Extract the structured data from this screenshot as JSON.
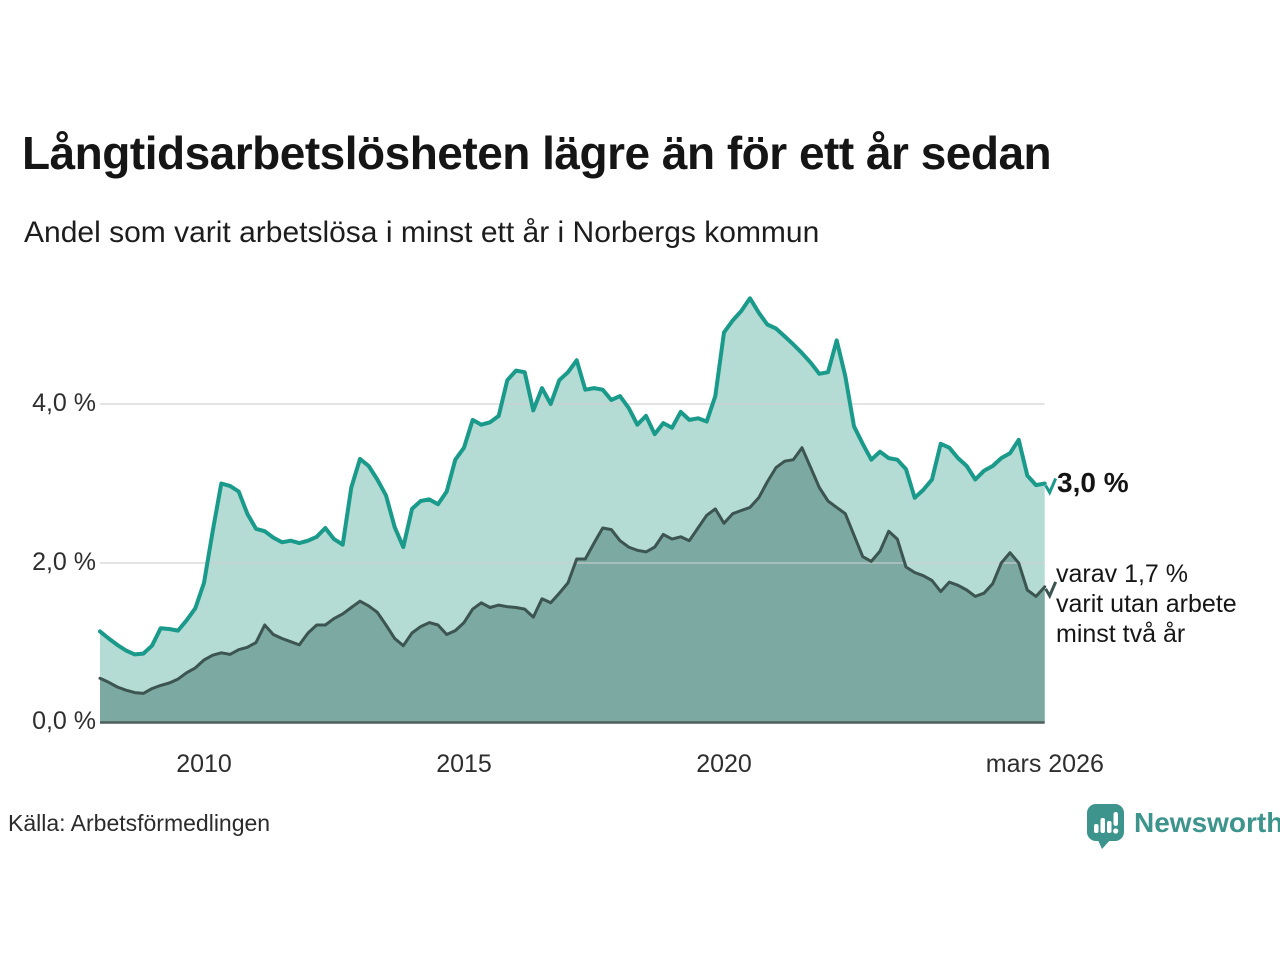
{
  "header": {
    "title": "Långtidsarbetslösheten lägre än för ett år sedan",
    "subtitle": "Andel som varit arbetslösa i minst ett år i Norbergs kommun"
  },
  "chart_data": {
    "type": "area",
    "title": "Långtidsarbetslösheten lägre än för ett år sedan",
    "subtitle": "Andel som varit arbetslösa i minst ett år i Norbergs kommun",
    "unit": "%",
    "x_start_year": 2008.0,
    "x_step_years": 0.16667,
    "x_end_year": 2026.17,
    "x_end_label": "mars 2026",
    "ylim": [
      0,
      5.6
    ],
    "grid": "horizontal",
    "legend_position": "right-annotations",
    "y_ticks": [
      {
        "value": 0,
        "label": "0,0 %"
      },
      {
        "value": 2,
        "label": "2,0 %"
      },
      {
        "value": 4,
        "label": "4,0 %"
      }
    ],
    "x_ticks": [
      {
        "year": 2010.0,
        "label": "2010"
      },
      {
        "year": 2015.0,
        "label": "2015"
      },
      {
        "year": 2020.0,
        "label": "2020"
      },
      {
        "year": 2026.17,
        "label": "mars 2026"
      }
    ],
    "series": [
      {
        "name": "Arbetslösa minst ett år",
        "latest_value": 3.0,
        "stroke": "#1a9a8b",
        "fill": "#b4dbd4",
        "stroke_width": 4,
        "values": [
          1.14,
          1.05,
          0.97,
          0.9,
          0.85,
          0.86,
          0.96,
          1.18,
          1.17,
          1.15,
          1.28,
          1.43,
          1.75,
          2.4,
          3.0,
          2.97,
          2.9,
          2.62,
          2.43,
          2.4,
          2.32,
          2.26,
          2.28,
          2.25,
          2.28,
          2.33,
          2.44,
          2.3,
          2.23,
          2.95,
          3.31,
          3.22,
          3.05,
          2.85,
          2.45,
          2.2,
          2.68,
          2.78,
          2.8,
          2.74,
          2.9,
          3.3,
          3.45,
          3.8,
          3.74,
          3.77,
          3.85,
          4.3,
          4.42,
          4.4,
          3.92,
          4.2,
          4.0,
          4.3,
          4.4,
          4.55,
          4.18,
          4.2,
          4.18,
          4.05,
          4.1,
          3.95,
          3.74,
          3.85,
          3.62,
          3.76,
          3.7,
          3.9,
          3.8,
          3.82,
          3.78,
          4.1,
          4.9,
          5.05,
          5.17,
          5.33,
          5.15,
          5.0,
          4.95,
          4.85,
          4.75,
          4.64,
          4.52,
          4.38,
          4.4,
          4.8,
          4.35,
          3.72,
          3.5,
          3.3,
          3.4,
          3.32,
          3.3,
          3.18,
          2.82,
          2.92,
          3.05,
          3.5,
          3.45,
          3.32,
          3.22,
          3.05,
          3.16,
          3.22,
          3.32,
          3.38,
          3.55,
          3.1,
          2.98,
          3.0
        ]
      },
      {
        "name": "Utan arbete minst två år",
        "latest_value": 1.7,
        "stroke": "#3c5551",
        "fill": "#7ca9a1",
        "stroke_width": 3,
        "values": [
          0.55,
          0.5,
          0.44,
          0.4,
          0.37,
          0.36,
          0.42,
          0.46,
          0.49,
          0.54,
          0.62,
          0.68,
          0.78,
          0.84,
          0.87,
          0.85,
          0.91,
          0.94,
          1.0,
          1.22,
          1.1,
          1.05,
          1.01,
          0.97,
          1.12,
          1.22,
          1.22,
          1.3,
          1.36,
          1.44,
          1.52,
          1.46,
          1.38,
          1.22,
          1.05,
          0.96,
          1.12,
          1.2,
          1.25,
          1.22,
          1.1,
          1.15,
          1.25,
          1.42,
          1.5,
          1.44,
          1.47,
          1.45,
          1.44,
          1.42,
          1.32,
          1.55,
          1.5,
          1.62,
          1.75,
          2.05,
          2.05,
          2.25,
          2.44,
          2.42,
          2.28,
          2.2,
          2.16,
          2.14,
          2.2,
          2.36,
          2.3,
          2.33,
          2.28,
          2.44,
          2.6,
          2.68,
          2.5,
          2.62,
          2.66,
          2.7,
          2.82,
          3.02,
          3.2,
          3.28,
          3.3,
          3.45,
          3.2,
          2.95,
          2.78,
          2.7,
          2.62,
          2.35,
          2.08,
          2.02,
          2.15,
          2.4,
          2.3,
          1.95,
          1.88,
          1.84,
          1.78,
          1.64,
          1.76,
          1.72,
          1.66,
          1.58,
          1.62,
          1.74,
          2.0,
          2.13,
          2.0,
          1.66,
          1.58,
          1.7
        ]
      }
    ],
    "gridline_color": "#cfcfcf",
    "baseline_color": "#4e5f5b"
  },
  "annotations": {
    "latest_total": "3,0 %",
    "two_years_lines": [
      "varav 1,7 %",
      "varit utan arbete",
      "minst två år"
    ]
  },
  "footer": {
    "source": "Källa: Arbetsförmedlingen",
    "brand": "Newsworthy",
    "brand_color": "#3d948c"
  }
}
